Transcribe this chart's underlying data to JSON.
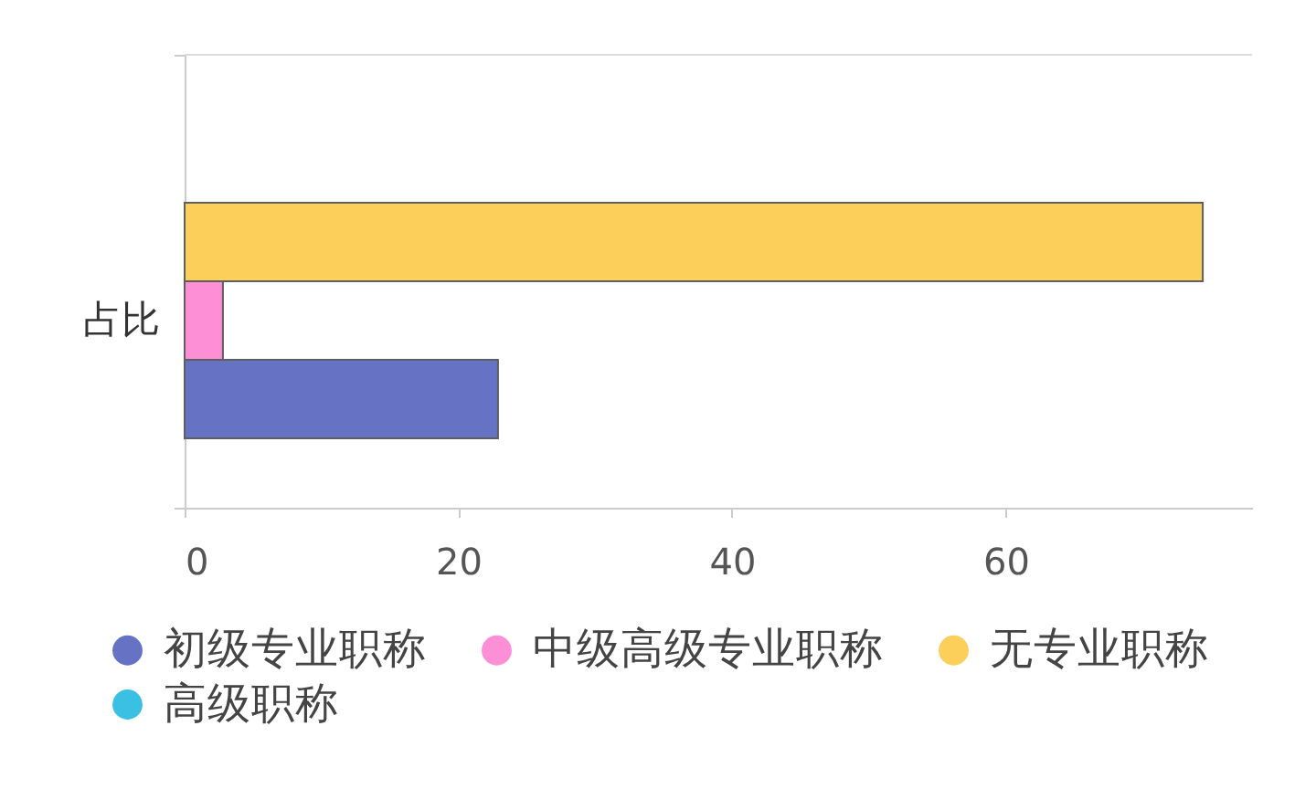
{
  "chart_data": {
    "type": "bar",
    "orientation": "horizontal",
    "categories": [
      "占比"
    ],
    "series": [
      {
        "name": "初级专业职称",
        "color": "#6672c4",
        "values": [
          22.9
        ]
      },
      {
        "name": "中级高级专业职称",
        "color": "#fd8fd6",
        "values": [
          2.8
        ]
      },
      {
        "name": "无专业职称",
        "color": "#fccf5b",
        "values": [
          74.4
        ]
      },
      {
        "name": "高级职称",
        "color": "#3bbfe2",
        "values": [
          null
        ]
      }
    ],
    "xlim": [
      0,
      78
    ],
    "xticks": [
      0,
      20,
      40,
      60
    ],
    "legend": "bottom left"
  }
}
